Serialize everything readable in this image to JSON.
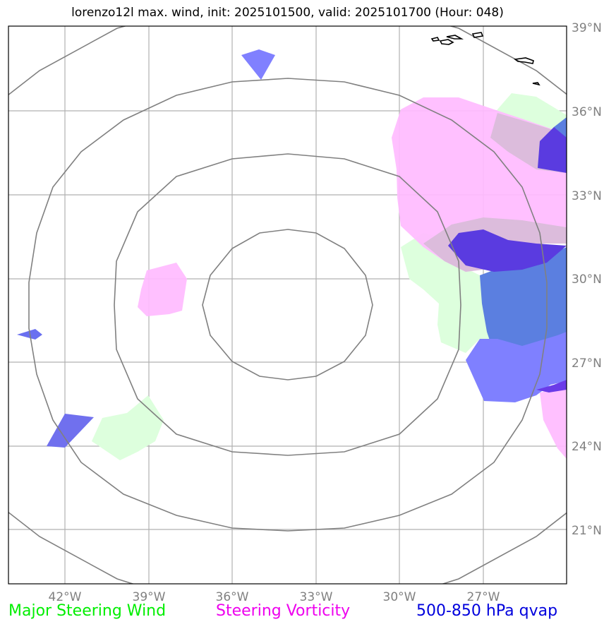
{
  "title": "lorenzo12l max. wind, init: 2025101500, valid: 2025101700 (Hour: 048)",
  "map": {
    "lat_labels": [
      "39°N",
      "36°N",
      "33°N",
      "30°N",
      "27°N",
      "24°N",
      "21°N"
    ],
    "lon_labels": [
      "42°W",
      "39°W",
      "36°W",
      "33°W",
      "30°W",
      "27°W"
    ],
    "colors": {
      "steering_wind": "#ddffdd",
      "steering_vorticity": "#ffbbff",
      "qvap_light": "#8080ff",
      "qvap_mid": "#5b7fe0",
      "qvap_dark": "#5a3be0",
      "range_rings": "#808080",
      "gridlines": "#b0b0b0",
      "coast": "#000000"
    }
  },
  "legend": {
    "steering_wind": "Major Steering Wind",
    "steering_vorticity": "Steering Vorticity",
    "qvap": "500-850 hPa qvap"
  }
}
